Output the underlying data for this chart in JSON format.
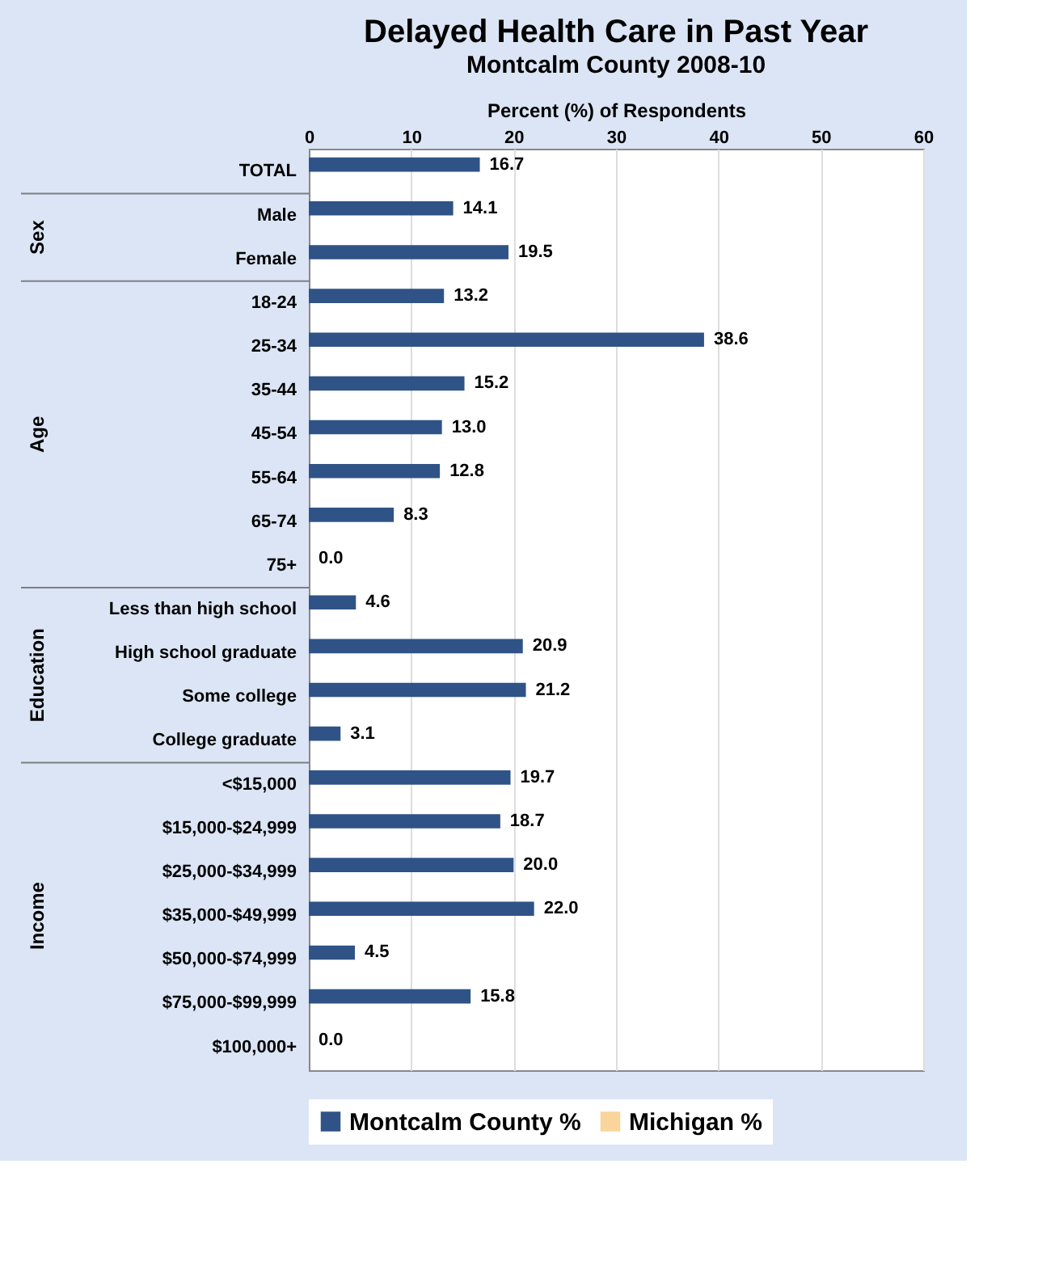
{
  "chart_data": {
    "type": "bar",
    "orientation": "horizontal",
    "title": "Delayed Health Care in Past Year",
    "subtitle": "Montcalm County 2008-10",
    "xlabel": "Percent (%) of Respondents",
    "categories": [
      "TOTAL",
      "Male",
      "Female",
      "18-24",
      "25-34",
      "35-44",
      "45-54",
      "55-64",
      "65-74",
      "75+",
      "Less than high school",
      "High school graduate",
      "Some college",
      "College graduate",
      "<$15,000",
      "$15,000-$24,999",
      "$25,000-$34,999",
      "$35,000-$49,999",
      "$50,000-$74,999",
      "$75,000-$99,999",
      "$100,000+"
    ],
    "series": [
      {
        "name": "Montcalm County %",
        "color": "#2f5386",
        "values": [
          16.7,
          14.1,
          19.5,
          13.2,
          38.6,
          15.2,
          13.0,
          12.8,
          8.3,
          0.0,
          4.6,
          20.9,
          21.2,
          3.1,
          19.7,
          18.7,
          20.0,
          22.0,
          4.5,
          15.8,
          0.0
        ],
        "value_labels": [
          "16.7",
          "14.1",
          "19.5",
          "13.2",
          "38.6",
          "15.2",
          "13.0",
          "12.8",
          "8.3",
          "0.0",
          "4.6",
          "20.9",
          "21.2",
          "3.1",
          "19.7",
          "18.7",
          "20.0",
          "22.0",
          "4.5",
          "15.8",
          "0.0"
        ]
      },
      {
        "name": "Michigan %",
        "color": "#f9d49b",
        "values": [
          null,
          null,
          null,
          null,
          null,
          null,
          null,
          null,
          null,
          null,
          null,
          null,
          null,
          null,
          null,
          null,
          null,
          null,
          null,
          null,
          null
        ]
      }
    ],
    "annotations": [
      "Sex",
      "Age",
      "Education",
      "Income"
    ],
    "xlim": [
      0,
      60
    ],
    "xticks": [
      0,
      10,
      20,
      30,
      40,
      50,
      60
    ],
    "grid": "x",
    "legend": "bottom"
  }
}
